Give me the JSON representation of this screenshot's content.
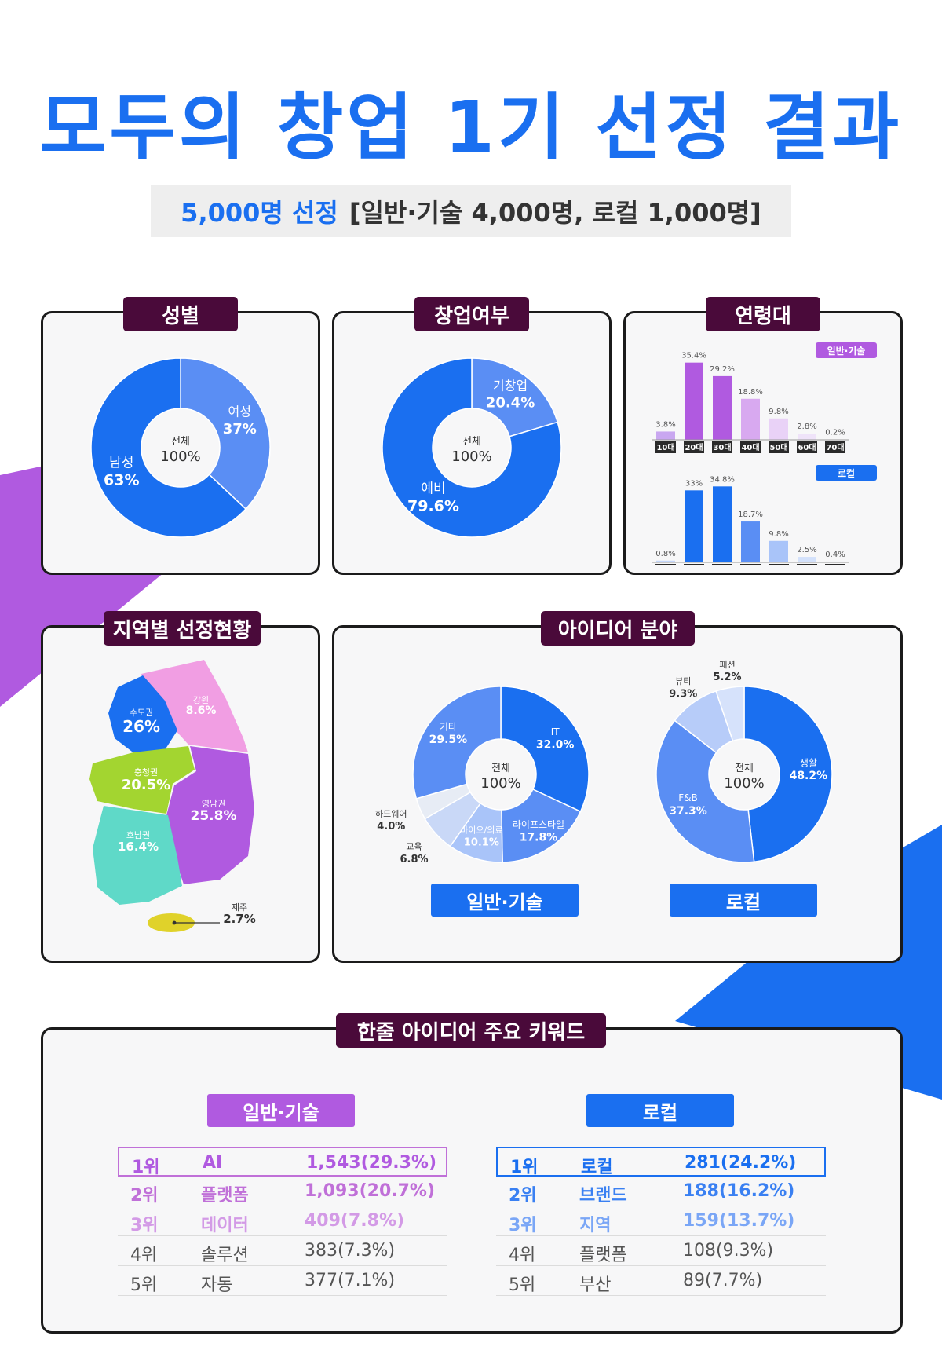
{
  "header": {
    "title": "모두의 창업 1기 선정 결과",
    "subtitle_highlight": "5,000명 선정",
    "subtitle_rest": "[일반·기술 4,000명, 로컬 1,000명]"
  },
  "panels": {
    "gender": "성별",
    "startup": "창업여부",
    "age": "연령대",
    "region": "지역별 선정현황",
    "idea": "아이디어 분야",
    "keywords": "한줄 아이디어 주요 키워드"
  },
  "donut_center": {
    "line1": "전체",
    "line2": "100%"
  },
  "colors": {
    "blue": "#1a6ff0",
    "light_blue": "#5a8ef4",
    "purple": "#b05ae0",
    "dark_label": "#4a0a3a"
  },
  "chart_data": [
    {
      "id": "gender",
      "type": "pie",
      "slices": [
        {
          "label": "여성",
          "value": 37,
          "text": "37%"
        },
        {
          "label": "남성",
          "value": 63,
          "text": "63%"
        }
      ]
    },
    {
      "id": "startup",
      "type": "pie",
      "slices": [
        {
          "label": "기창업",
          "value": 20.4,
          "text": "20.4%"
        },
        {
          "label": "예비",
          "value": 79.6,
          "text": "79.6%"
        }
      ]
    },
    {
      "id": "age",
      "type": "bar",
      "categories": [
        "10대",
        "20대",
        "30대",
        "40대",
        "50대",
        "60대",
        "70대"
      ],
      "series": [
        {
          "name": "일반·기술",
          "values": [
            3.8,
            35.4,
            29.2,
            18.8,
            9.8,
            2.8,
            0.2
          ],
          "labels": [
            "3.8%",
            "35.4%",
            "29.2%",
            "18.8%",
            "9.8%",
            "2.8%",
            "0.2%"
          ]
        },
        {
          "name": "로컬",
          "values": [
            0.8,
            33,
            34.8,
            18.7,
            9.8,
            2.5,
            0.4
          ],
          "labels": [
            "0.8%",
            "33%",
            "34.8%",
            "18.7%",
            "9.8%",
            "2.5%",
            "0.4%"
          ]
        }
      ]
    },
    {
      "id": "region",
      "type": "map",
      "regions": [
        {
          "label": "수도권",
          "value": 26,
          "text": "26%"
        },
        {
          "label": "강원",
          "value": 8.6,
          "text": "8.6%"
        },
        {
          "label": "충청권",
          "value": 20.5,
          "text": "20.5%"
        },
        {
          "label": "영남권",
          "value": 25.8,
          "text": "25.8%"
        },
        {
          "label": "호남권",
          "value": 16.4,
          "text": "16.4%"
        },
        {
          "label": "제주",
          "value": 2.7,
          "text": "2.7%"
        }
      ]
    },
    {
      "id": "idea_general",
      "type": "pie",
      "name": "일반·기술",
      "slices": [
        {
          "label": "IT",
          "value": 32.0,
          "text": "32.0%"
        },
        {
          "label": "라이프스타일",
          "value": 17.8,
          "text": "17.8%"
        },
        {
          "label": "바이오/의료",
          "value": 10.1,
          "text": "10.1%"
        },
        {
          "label": "교육",
          "value": 6.8,
          "text": "6.8%"
        },
        {
          "label": "하드웨어",
          "value": 4.0,
          "text": "4.0%"
        },
        {
          "label": "기타",
          "value": 29.5,
          "text": "29.5%"
        }
      ]
    },
    {
      "id": "idea_local",
      "type": "pie",
      "name": "로컬",
      "slices": [
        {
          "label": "생활",
          "value": 48.2,
          "text": "48.2%"
        },
        {
          "label": "F&B",
          "value": 37.3,
          "text": "37.3%"
        },
        {
          "label": "뷰티",
          "value": 9.3,
          "text": "9.3%"
        },
        {
          "label": "패션",
          "value": 5.2,
          "text": "5.2%"
        }
      ]
    },
    {
      "id": "keywords",
      "type": "table",
      "tables": [
        {
          "name": "일반·기술",
          "rows": [
            {
              "rank": "1위",
              "word": "AI",
              "value": "1,543(29.3%)"
            },
            {
              "rank": "2위",
              "word": "플랫폼",
              "value": "1,093(20.7%)"
            },
            {
              "rank": "3위",
              "word": "데이터",
              "value": "409(7.8%)"
            },
            {
              "rank": "4위",
              "word": "솔루션",
              "value": "383(7.3%)"
            },
            {
              "rank": "5위",
              "word": "자동",
              "value": "377(7.1%)"
            }
          ]
        },
        {
          "name": "로컬",
          "rows": [
            {
              "rank": "1위",
              "word": "로컬",
              "value": "281(24.2%)"
            },
            {
              "rank": "2위",
              "word": "브랜드",
              "value": "188(16.2%)"
            },
            {
              "rank": "3위",
              "word": "지역",
              "value": "159(13.7%)"
            },
            {
              "rank": "4위",
              "word": "플랫폼",
              "value": "108(9.3%)"
            },
            {
              "rank": "5위",
              "word": "부산",
              "value": "89(7.7%)"
            }
          ]
        }
      ]
    }
  ]
}
